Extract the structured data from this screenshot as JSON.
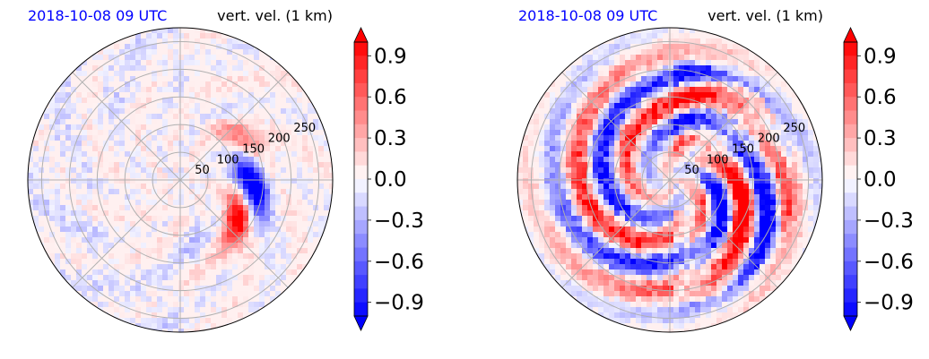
{
  "chart_data": [
    {
      "type": "heatmap",
      "projection": "polar",
      "title_left": "2018-10-08 09 UTC",
      "title_right": "vert. vel. (1 km)",
      "title_left_color": "#0000ff",
      "radial_tick_labels": [
        "50",
        "100",
        "150",
        "200",
        "250"
      ],
      "radial_ticks": [
        50,
        100,
        150,
        200,
        250
      ],
      "rmax": 275,
      "colorbar": {
        "ticks": [
          0.9,
          0.6,
          0.3,
          0.0,
          -0.3,
          -0.6,
          -0.9
        ],
        "tick_labels": [
          "0.9",
          "0.6",
          "0.3",
          "0.0",
          "−0.3",
          "−0.6",
          "−0.9"
        ],
        "range": [
          -1.0,
          1.0
        ],
        "extend": "both",
        "colormap": "bwr",
        "positive_color": "#ff0000",
        "negative_color": "#0000ff"
      },
      "grid": true
    },
    {
      "type": "heatmap",
      "projection": "polar",
      "title_left": "2018-10-08 09 UTC",
      "title_right": "vert. vel. (1 km)",
      "title_left_color": "#0000ff",
      "radial_tick_labels": [
        "50",
        "100",
        "150",
        "200",
        "250"
      ],
      "radial_ticks": [
        50,
        100,
        150,
        200,
        250
      ],
      "rmax": 275,
      "colorbar": {
        "ticks": [
          0.9,
          0.6,
          0.3,
          0.0,
          -0.3,
          -0.6,
          -0.9
        ],
        "tick_labels": [
          "0.9",
          "0.6",
          "0.3",
          "0.0",
          "−0.3",
          "−0.6",
          "−0.9"
        ],
        "range": [
          -1.0,
          1.0
        ],
        "extend": "both",
        "colormap": "bwr",
        "positive_color": "#ff0000",
        "negative_color": "#0000ff"
      },
      "grid": true
    }
  ]
}
